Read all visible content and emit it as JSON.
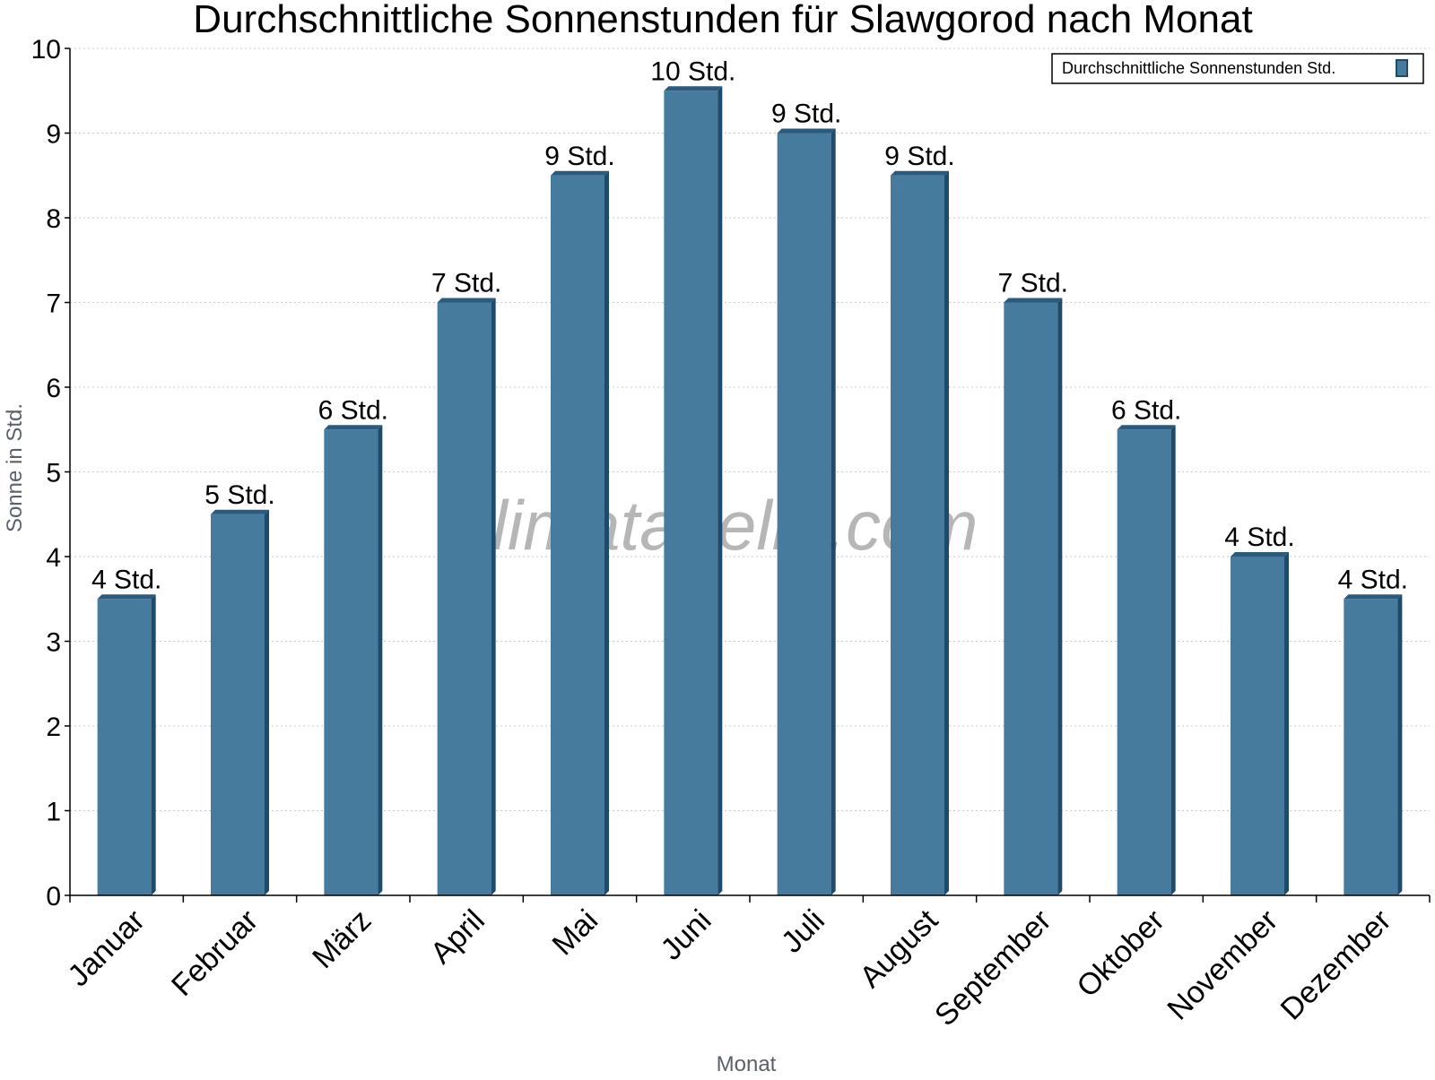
{
  "chart_data": {
    "type": "bar",
    "title": "Durchschnittliche Sonnenstunden für Slawgorod nach Monat",
    "xlabel": "Monat",
    "ylabel": "Sonne in Std.",
    "categories": [
      "Januar",
      "Februar",
      "März",
      "April",
      "Mai",
      "Juni",
      "Juli",
      "August",
      "September",
      "Oktober",
      "November",
      "Dezember"
    ],
    "series": [
      {
        "name": "Durchschnittliche Sonnenstunden Std.",
        "values": [
          3.5,
          4.5,
          5.5,
          7,
          8.5,
          9.5,
          9,
          8.5,
          7,
          5.5,
          4,
          3.5
        ],
        "labels": [
          "4 Std.",
          "5 Std.",
          "6 Std.",
          "7 Std.",
          "9 Std.",
          "10 Std.",
          "9 Std.",
          "9 Std.",
          "7 Std.",
          "6 Std.",
          "4 Std.",
          "4 Std."
        ]
      }
    ],
    "ylim": [
      0,
      10
    ],
    "yticks": [
      "0",
      "1",
      "2",
      "3",
      "4",
      "5",
      "6",
      "7",
      "8",
      "9",
      "10"
    ],
    "grid": true,
    "legend_position": "top-right",
    "colors": {
      "bar": "#467b9d",
      "bar_side": "#1e4a6b",
      "bar_top": "#2a5a7e"
    },
    "watermark": "klimatabelle.com"
  }
}
